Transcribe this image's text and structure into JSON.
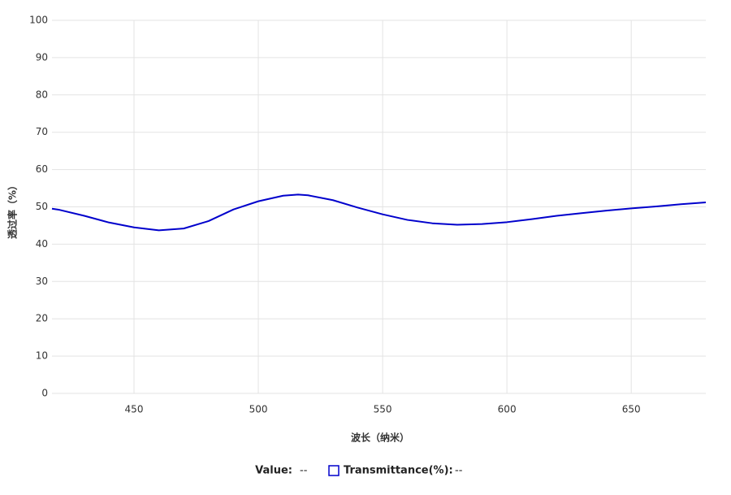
{
  "chart_data": {
    "type": "line",
    "xlabel": "波长（纳米）",
    "ylabel": "透过率（%）",
    "x": [
      417,
      420,
      430,
      440,
      450,
      460,
      470,
      480,
      490,
      500,
      510,
      516,
      520,
      530,
      540,
      550,
      560,
      570,
      580,
      590,
      600,
      610,
      620,
      630,
      640,
      650,
      660,
      670,
      680
    ],
    "series": [
      {
        "name": "Transmittance(%):",
        "color": "#0000cc",
        "readout": "--",
        "values": [
          49.5,
          49.2,
          47.6,
          45.8,
          44.5,
          43.7,
          44.2,
          46.2,
          49.3,
          51.5,
          53.0,
          53.3,
          53.1,
          51.8,
          49.8,
          48.0,
          46.5,
          45.6,
          45.2,
          45.4,
          45.9,
          46.7,
          47.6,
          48.3,
          49.0,
          49.6,
          50.1,
          50.7,
          51.2
        ]
      }
    ],
    "value_readout": {
      "label": "Value:",
      "value": "--"
    },
    "xlim": [
      417,
      680
    ],
    "xticks": [
      450,
      500,
      550,
      600,
      650
    ],
    "ylim": [
      0,
      100
    ],
    "yticks": [
      0,
      10,
      20,
      30,
      40,
      50,
      60,
      70,
      80,
      90,
      100
    ],
    "grid": true
  }
}
